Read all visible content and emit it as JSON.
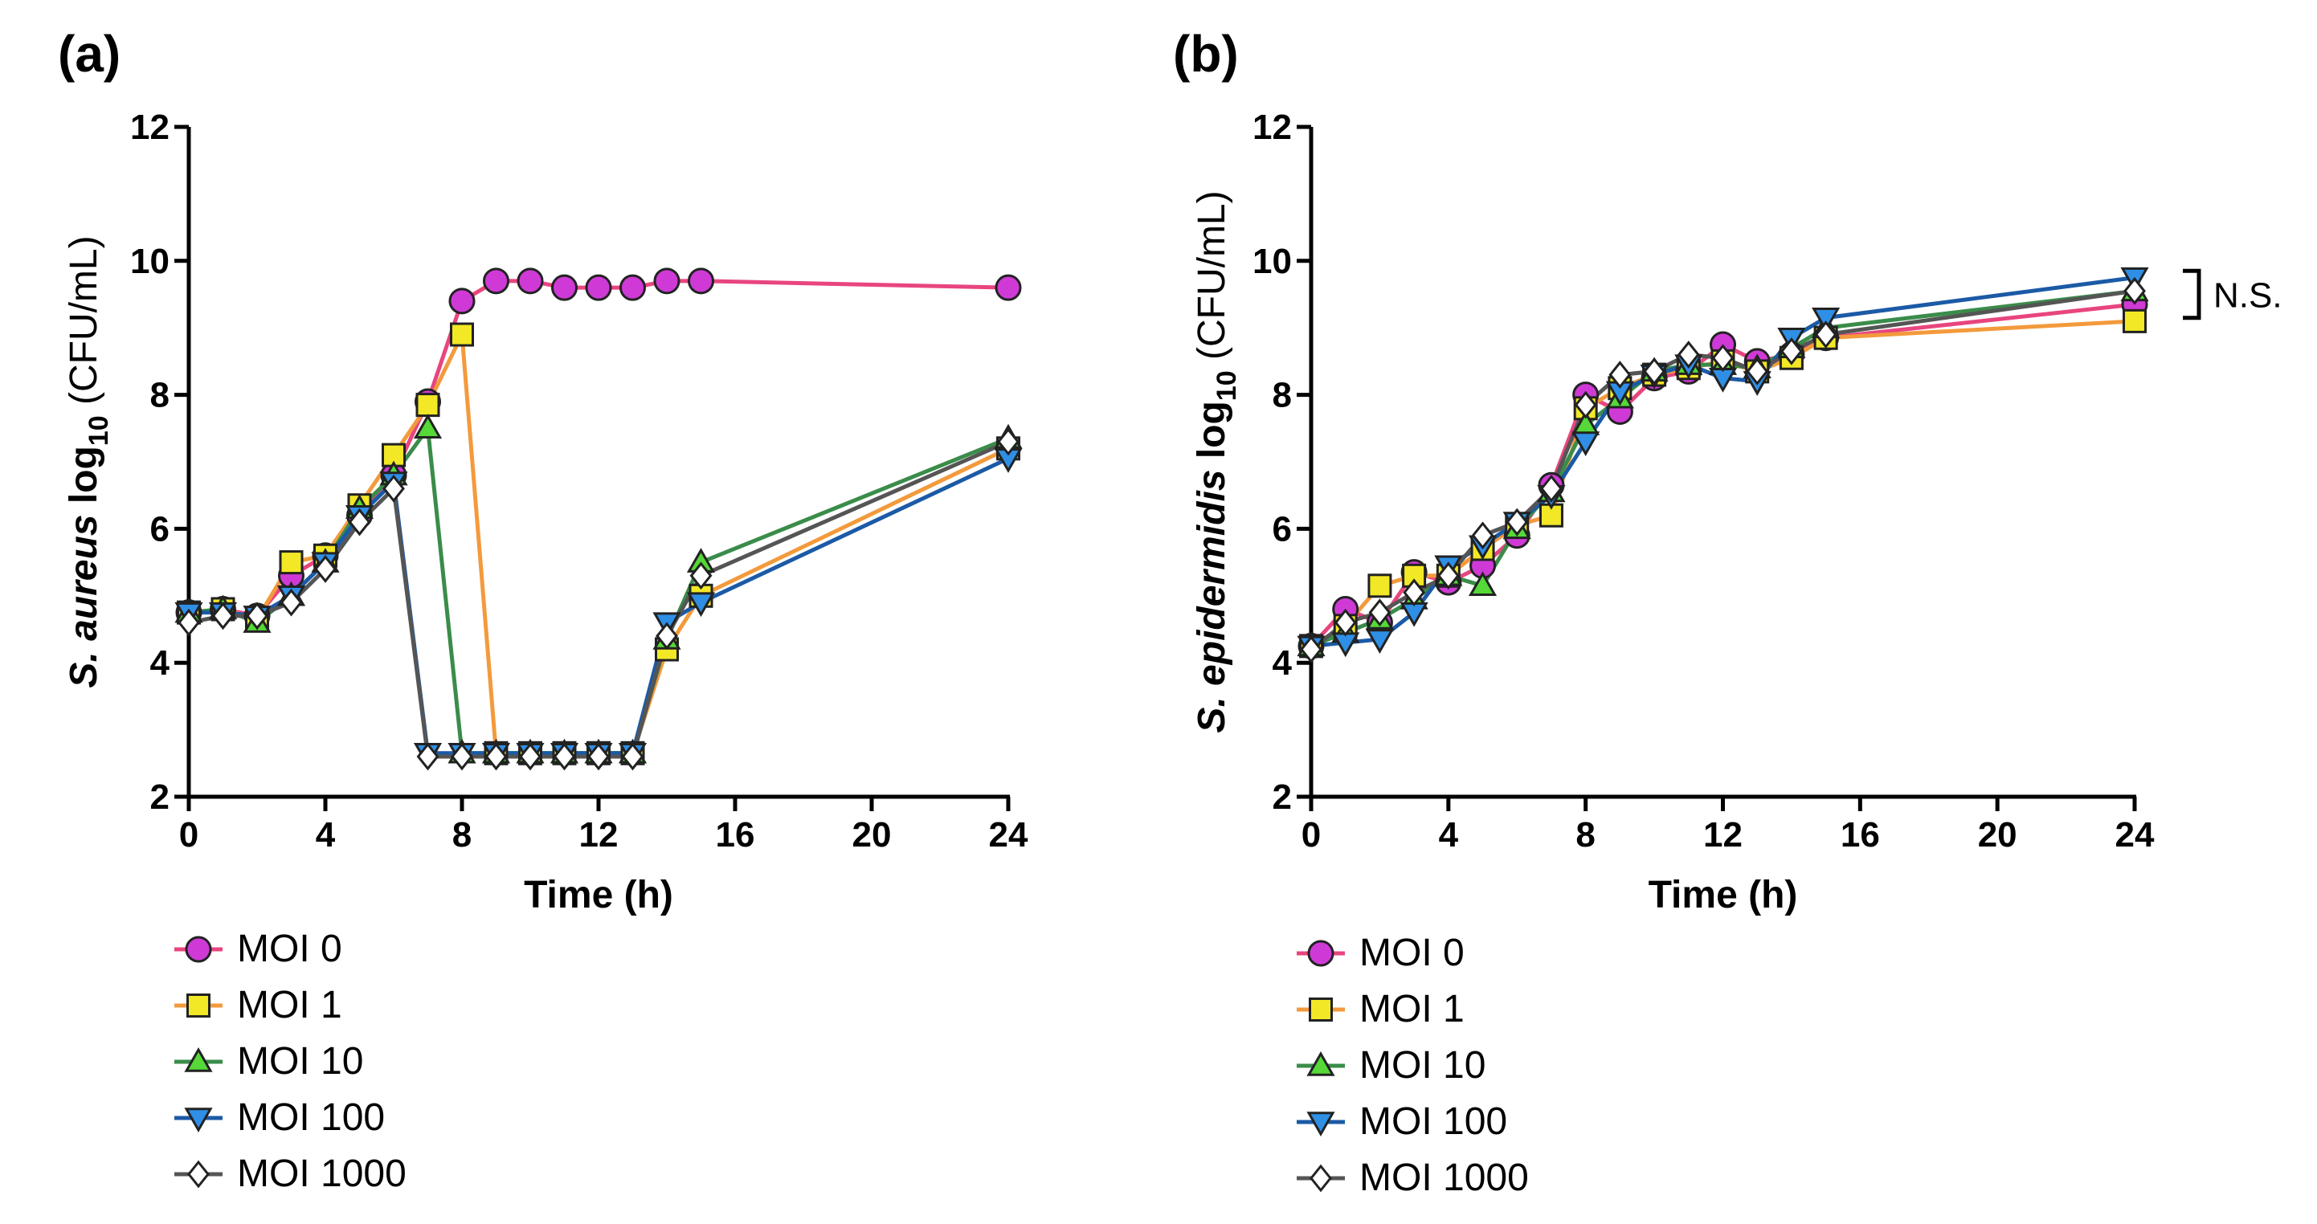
{
  "chart_data": [
    {
      "panel": "(a)",
      "type": "line",
      "xlabel": "Time (h)",
      "ylabel_italic": "S. aureus",
      "ylabel_log": "log",
      "ylabel_sub": "10",
      "ylabel_unit": "(CFU/mL)",
      "xlim": [
        0,
        24
      ],
      "ylim": [
        2,
        12
      ],
      "xticks": [
        0,
        4,
        8,
        12,
        16,
        20,
        24
      ],
      "yticks": [
        2,
        4,
        6,
        8,
        10,
        12
      ],
      "x": [
        0,
        1,
        2,
        3,
        4,
        5,
        6,
        7,
        8,
        9,
        10,
        11,
        12,
        13,
        14,
        15,
        24
      ],
      "series": [
        {
          "name": "MOI 0",
          "marker": "circle",
          "color": "#e8457f",
          "fill": "#cf3ad6",
          "values": [
            4.75,
            4.8,
            4.7,
            5.3,
            5.6,
            6.2,
            6.8,
            7.9,
            9.4,
            9.7,
            9.7,
            9.6,
            9.6,
            9.6,
            9.7,
            9.7,
            9.6
          ]
        },
        {
          "name": "MOI 1",
          "marker": "square",
          "color": "#f39a3c",
          "fill": "#f2e826",
          "values": [
            4.75,
            4.8,
            4.65,
            5.5,
            5.6,
            6.35,
            7.1,
            7.85,
            8.9,
            2.65,
            2.65,
            2.65,
            2.65,
            2.65,
            4.2,
            5.0,
            7.2
          ]
        },
        {
          "name": "MOI 10",
          "marker": "triangle-up",
          "color": "#3a8c4a",
          "fill": "#55d838",
          "values": [
            4.75,
            4.8,
            4.6,
            5.0,
            5.5,
            6.3,
            6.8,
            7.5,
            2.65,
            2.65,
            2.65,
            2.65,
            2.65,
            2.65,
            4.35,
            5.5,
            7.35
          ]
        },
        {
          "name": "MOI 100",
          "marker": "triangle-down",
          "color": "#1b5aa6",
          "fill": "#2f8fe6",
          "values": [
            4.75,
            4.75,
            4.7,
            5.0,
            5.5,
            6.2,
            6.7,
            2.65,
            2.65,
            2.65,
            2.65,
            2.65,
            2.65,
            2.65,
            4.6,
            4.9,
            7.05
          ]
        },
        {
          "name": "MOI 1000",
          "marker": "diamond",
          "color": "#555555",
          "fill": "#ffffff",
          "values": [
            4.6,
            4.7,
            4.7,
            4.9,
            5.4,
            6.1,
            6.6,
            2.6,
            2.6,
            2.6,
            2.6,
            2.6,
            2.6,
            2.6,
            4.4,
            5.3,
            7.3
          ]
        }
      ]
    },
    {
      "panel": "(b)",
      "type": "line",
      "xlabel": "Time (h)",
      "ylabel_italic": "S. epidermidis",
      "ylabel_log": "log",
      "ylabel_sub": "10",
      "ylabel_unit": "(CFU/mL)",
      "xlim": [
        0,
        24
      ],
      "ylim": [
        2,
        12
      ],
      "xticks": [
        0,
        4,
        8,
        12,
        16,
        20,
        24
      ],
      "yticks": [
        2,
        4,
        6,
        8,
        10,
        12
      ],
      "annotation": "N.S.",
      "x": [
        0,
        1,
        2,
        3,
        4,
        5,
        6,
        7,
        8,
        9,
        10,
        11,
        12,
        13,
        14,
        15,
        24
      ],
      "series": [
        {
          "name": "MOI 0",
          "marker": "circle",
          "color": "#e8457f",
          "fill": "#cf3ad6",
          "values": [
            4.25,
            4.8,
            4.6,
            5.35,
            5.2,
            5.45,
            5.9,
            6.65,
            8.0,
            7.75,
            8.25,
            8.35,
            8.75,
            8.5,
            8.6,
            8.85,
            9.35
          ]
        },
        {
          "name": "MOI 1",
          "marker": "square",
          "color": "#f39a3c",
          "fill": "#f2e826",
          "values": [
            4.25,
            4.55,
            5.15,
            5.3,
            5.3,
            5.7,
            6.05,
            6.2,
            7.8,
            8.1,
            8.3,
            8.4,
            8.5,
            8.35,
            8.55,
            8.85,
            9.1
          ]
        },
        {
          "name": "MOI 10",
          "marker": "triangle-up",
          "color": "#3a8c4a",
          "fill": "#55d838",
          "values": [
            4.25,
            4.45,
            4.65,
            4.95,
            5.3,
            5.15,
            6.0,
            6.55,
            7.55,
            7.95,
            8.35,
            8.45,
            8.45,
            8.4,
            8.7,
            9.0,
            9.55
          ]
        },
        {
          "name": "MOI 100",
          "marker": "triangle-down",
          "color": "#1b5aa6",
          "fill": "#2f8fe6",
          "values": [
            4.25,
            4.3,
            4.35,
            4.75,
            5.45,
            5.75,
            6.1,
            6.5,
            7.3,
            8.05,
            8.3,
            8.45,
            8.25,
            8.2,
            8.85,
            9.15,
            9.75
          ]
        },
        {
          "name": "MOI 1000",
          "marker": "diamond",
          "color": "#555555",
          "fill": "#ffffff",
          "values": [
            4.2,
            4.6,
            4.75,
            5.05,
            5.3,
            5.9,
            6.1,
            6.6,
            7.85,
            8.3,
            8.35,
            8.6,
            8.55,
            8.35,
            8.65,
            8.9,
            9.55
          ]
        }
      ]
    }
  ]
}
